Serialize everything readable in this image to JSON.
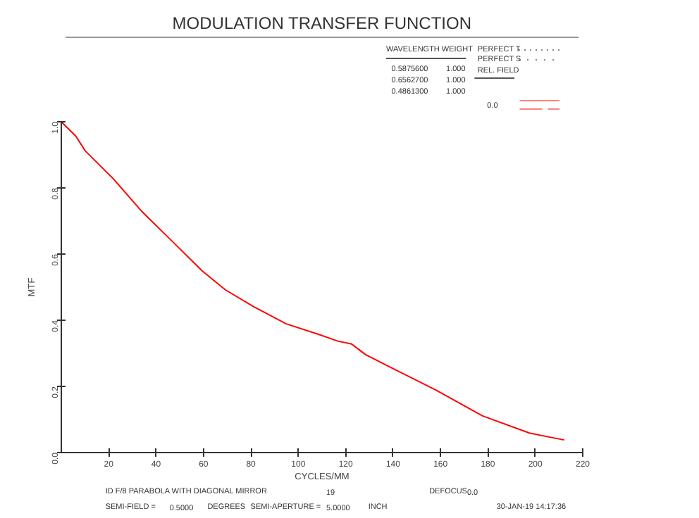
{
  "chart_data": {
    "type": "line",
    "title": "MODULATION TRANSFER FUNCTION",
    "xlabel": "CYCLES/MM",
    "ylabel": "MTF",
    "x": [
      0,
      6.1,
      10.1,
      21.9,
      33.7,
      45.6,
      59.3,
      69.2,
      81.1,
      94.9,
      108.7,
      116.6,
      122.5,
      128.4,
      138.3,
      158.0,
      177.7,
      197.5,
      212.2
    ],
    "series": [
      {
        "color": "#ff0000",
        "values": [
          1.0,
          0.957,
          0.912,
          0.828,
          0.731,
          0.647,
          0.55,
          0.492,
          0.441,
          0.389,
          0.357,
          0.337,
          0.328,
          0.296,
          0.26,
          0.189,
          0.111,
          0.059,
          0.038
        ]
      }
    ],
    "xlim": [
      0,
      220
    ],
    "ylim": [
      0,
      1
    ],
    "xticks": [
      20,
      40,
      60,
      80,
      100,
      120,
      140,
      160,
      180,
      200,
      220
    ],
    "yticks": [
      {
        "value": 0,
        "label": "0.0"
      },
      {
        "value": 0.2,
        "label": "0.2"
      },
      {
        "value": 0.4,
        "label": "0.4"
      },
      {
        "value": 0.6,
        "label": "0.6"
      },
      {
        "value": 0.8,
        "label": "0.8"
      },
      {
        "value": 1,
        "label": "1.0"
      }
    ],
    "grid": false,
    "annotations": [
      "WAVELENGTH  WEIGHT",
      "0.5875600",
      "1.000",
      "0.6562700",
      "1.000",
      "0.4861300",
      "1.000",
      "PERFECT T",
      "PERFECT S",
      "REL. FIELD",
      "0.0",
      "ID F/8 PARABOLA WITH DIAGONAL MIRROR",
      "19",
      "DEFOCUS",
      "0.0",
      "SEMI-FIELD =",
      "0.5000",
      "DEGREES",
      "SEMI-APERTURE =",
      "5.0000",
      "INCH",
      "30-JAN-19  14:17:36"
    ]
  }
}
